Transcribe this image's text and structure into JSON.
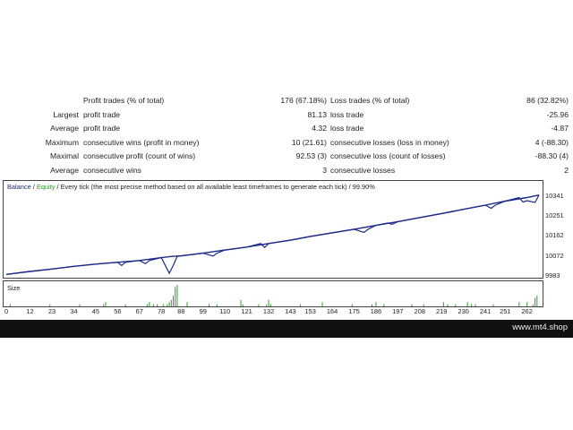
{
  "stats": [
    {
      "c1": "",
      "c2": "Profit trades (% of total)",
      "c3": "176 (67.18%)",
      "c4": "Loss trades (% of total)",
      "c5": "86 (32.82%)"
    },
    {
      "c1": "Largest",
      "c2": "profit trade",
      "c3": "81.13",
      "c4": "loss trade",
      "c5": "-25.96"
    },
    {
      "c1": "Average",
      "c2": "profit trade",
      "c3": "4.32",
      "c4": "loss trade",
      "c5": "-4.87"
    },
    {
      "c1": "Maximum",
      "c2": "consecutive wins (profit in money)",
      "c3": "10 (21.61)",
      "c4": "consecutive losses (loss in money)",
      "c5": "4 (-88.30)"
    },
    {
      "c1": "Maximal",
      "c2": "consecutive profit (count of wins)",
      "c3": "92.53 (3)",
      "c4": "consecutive loss (count of losses)",
      "c5": "-88.30 (4)"
    },
    {
      "c1": "Average",
      "c2": "consecutive wins",
      "c3": "3",
      "c4": "consecutive losses",
      "c5": "2"
    }
  ],
  "chart": {
    "legend_balance": "Balance",
    "legend_sep": " / ",
    "legend_equity": "Equity",
    "legend_rest": " / Every tick (the most precise method based on all available least timeframes to generate each tick) / 99.90%",
    "size_label": "Size",
    "colors": {
      "balance": "#1c2a8c",
      "equity": "#2a9a2a",
      "volume": "#2ca02c"
    }
  },
  "chart_data": {
    "type": "line",
    "x_ticks": [
      "0",
      "12",
      "23",
      "34",
      "45",
      "56",
      "67",
      "78",
      "88",
      "99",
      "110",
      "121",
      "132",
      "143",
      "153",
      "164",
      "175",
      "186",
      "197",
      "208",
      "219",
      "230",
      "241",
      "251",
      "262"
    ],
    "y_ticks": [
      "10341",
      "10251",
      "10162",
      "10072",
      "9983"
    ],
    "ylim": [
      9983,
      10360
    ],
    "xlim": [
      0,
      268
    ],
    "series": [
      {
        "name": "Balance",
        "x": [
          0,
          12,
          23,
          34,
          45,
          56,
          67,
          78,
          83,
          88,
          99,
          110,
          121,
          132,
          143,
          153,
          164,
          175,
          186,
          197,
          208,
          219,
          230,
          241,
          251,
          262,
          268
        ],
        "y": [
          9990,
          10003,
          10014,
          10026,
          10036,
          10044,
          10052,
          10065,
          10070,
          10073,
          10085,
          10099,
          10112,
          10128,
          10143,
          10160,
          10176,
          10192,
          10209,
          10226,
          10244,
          10262,
          10281,
          10300,
          10318,
          10334,
          10345
        ]
      },
      {
        "name": "Equity",
        "x": [
          0,
          12,
          23,
          34,
          45,
          56,
          58,
          60,
          67,
          70,
          72,
          78,
          80,
          82,
          84,
          86,
          88,
          99,
          104,
          106,
          110,
          121,
          128,
          130,
          132,
          143,
          153,
          164,
          175,
          180,
          182,
          186,
          192,
          194,
          197,
          208,
          219,
          230,
          241,
          244,
          246,
          251,
          258,
          260,
          262,
          266,
          268
        ],
        "y": [
          9990,
          10003,
          10014,
          10026,
          10036,
          10044,
          10030,
          10044,
          10052,
          10038,
          10052,
          10065,
          10030,
          9995,
          10030,
          10070,
          10073,
          10085,
          10072,
          10085,
          10099,
          10112,
          10128,
          10110,
          10128,
          10143,
          10160,
          10176,
          10192,
          10178,
          10192,
          10209,
          10220,
          10214,
          10226,
          10244,
          10262,
          10281,
          10300,
          10286,
          10300,
          10318,
          10334,
          10314,
          10320,
          10312,
          10345
        ]
      }
    ],
    "volume": {
      "x": [
        2,
        22,
        37,
        49,
        50,
        60,
        71,
        72,
        74,
        76,
        79,
        81,
        82,
        83,
        84,
        85,
        86,
        91,
        102,
        106,
        118,
        119,
        127,
        131,
        132,
        133,
        148,
        159,
        174,
        184,
        186,
        190,
        204,
        210,
        220,
        222,
        226,
        232,
        234,
        236,
        245,
        258,
        262,
        265,
        266,
        267
      ],
      "v": [
        1,
        1,
        1,
        1,
        2,
        1,
        1,
        2,
        1,
        1,
        1,
        1,
        2,
        3,
        5,
        9,
        10,
        2,
        1,
        1,
        3,
        1,
        1,
        1,
        3,
        1,
        1,
        2,
        1,
        1,
        2,
        1,
        1,
        1,
        2,
        1,
        1,
        2,
        1,
        1,
        1,
        2,
        2,
        1,
        4,
        5
      ]
    }
  },
  "footer": {
    "text": "www.mt4.shop"
  }
}
